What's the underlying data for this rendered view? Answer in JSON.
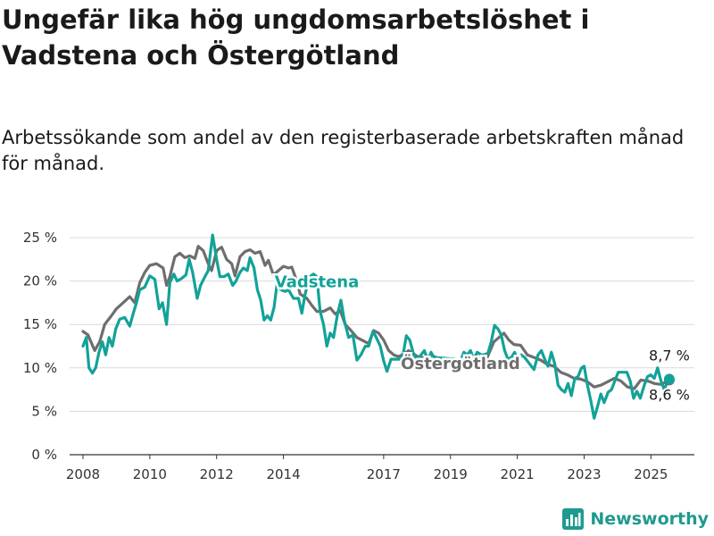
{
  "title": "Ungefär lika hög ungdomsarbetslöshet i Vadstena och Östergötland",
  "subtitle": "Arbetssökande som andel av den registerbaserade arbetskraften månad för månad.",
  "brand": {
    "name": "Newsworthy",
    "icon": "newsworthy-logo-icon",
    "color": "#1f9a8f"
  },
  "chart_data": {
    "type": "line",
    "title": "Ungefär lika hög ungdomsarbetslöshet i Vadstena och Östergötland",
    "xlabel": "",
    "ylabel": "",
    "xlim": [
      2007.6,
      2026.3
    ],
    "ylim": [
      0,
      25
    ],
    "y_ticks": [
      0,
      5,
      10,
      15,
      20,
      25
    ],
    "y_tick_labels": [
      "0 %",
      "5 %",
      "10 %",
      "15 %",
      "20 %",
      "25 %"
    ],
    "x_ticks": [
      2008,
      2010,
      2012,
      2014,
      2017,
      2019,
      2021,
      2023,
      2025
    ],
    "x_tick_labels": [
      "2008",
      "2010",
      "2012",
      "2014",
      "2017",
      "2019",
      "2021",
      "2023",
      "2025"
    ],
    "grid": true,
    "legend": "inline labels",
    "series": [
      {
        "name": "Östergötland",
        "color": "#6e6e6e",
        "end_label": "8,6 %",
        "points": [
          [
            2008.0,
            14.2
          ],
          [
            2008.15,
            13.8
          ],
          [
            2008.35,
            12.0
          ],
          [
            2008.5,
            13.0
          ],
          [
            2008.65,
            15.0
          ],
          [
            2008.85,
            16.0
          ],
          [
            2009.0,
            16.8
          ],
          [
            2009.2,
            17.5
          ],
          [
            2009.4,
            18.2
          ],
          [
            2009.55,
            17.5
          ],
          [
            2009.7,
            19.8
          ],
          [
            2009.85,
            21.0
          ],
          [
            2010.0,
            21.8
          ],
          [
            2010.2,
            22.0
          ],
          [
            2010.4,
            21.5
          ],
          [
            2010.5,
            19.5
          ],
          [
            2010.6,
            20.5
          ],
          [
            2010.75,
            22.8
          ],
          [
            2010.9,
            23.2
          ],
          [
            2011.05,
            22.7
          ],
          [
            2011.2,
            22.9
          ],
          [
            2011.35,
            22.6
          ],
          [
            2011.45,
            24.0
          ],
          [
            2011.6,
            23.5
          ],
          [
            2011.75,
            22.0
          ],
          [
            2011.85,
            21.2
          ],
          [
            2012.0,
            23.5
          ],
          [
            2012.15,
            23.9
          ],
          [
            2012.3,
            22.5
          ],
          [
            2012.45,
            22.0
          ],
          [
            2012.55,
            20.6
          ],
          [
            2012.7,
            22.8
          ],
          [
            2012.85,
            23.4
          ],
          [
            2013.0,
            23.6
          ],
          [
            2013.15,
            23.2
          ],
          [
            2013.3,
            23.4
          ],
          [
            2013.45,
            21.8
          ],
          [
            2013.55,
            22.4
          ],
          [
            2013.7,
            20.7
          ],
          [
            2013.85,
            21.2
          ],
          [
            2014.0,
            21.7
          ],
          [
            2014.15,
            21.5
          ],
          [
            2014.25,
            21.6
          ],
          [
            2014.4,
            20.0
          ],
          [
            2014.5,
            18.5
          ],
          [
            2014.7,
            18.0
          ],
          [
            2014.85,
            17.2
          ],
          [
            2015.0,
            16.5
          ],
          [
            2015.2,
            16.5
          ],
          [
            2015.4,
            16.9
          ],
          [
            2015.55,
            16.2
          ],
          [
            2015.7,
            16.6
          ],
          [
            2015.85,
            15.0
          ],
          [
            2016.0,
            14.4
          ],
          [
            2016.2,
            13.5
          ],
          [
            2016.4,
            13.1
          ],
          [
            2016.55,
            12.8
          ],
          [
            2016.7,
            14.3
          ],
          [
            2016.85,
            14.0
          ],
          [
            2017.0,
            13.2
          ],
          [
            2017.15,
            12.0
          ],
          [
            2017.3,
            11.5
          ],
          [
            2017.45,
            11.3
          ],
          [
            2017.6,
            11.6
          ],
          [
            2017.75,
            12.0
          ],
          [
            2017.9,
            11.6
          ],
          [
            2018.05,
            11.2
          ],
          [
            2018.25,
            11.2
          ],
          [
            2018.45,
            11.4
          ],
          [
            2018.65,
            11.1
          ],
          [
            2018.85,
            10.8
          ],
          [
            2019.1,
            10.0
          ],
          [
            2019.45,
            10.6
          ],
          [
            2019.7,
            10.9
          ],
          [
            2019.9,
            11.1
          ],
          [
            2020.1,
            11.2
          ],
          [
            2020.3,
            13.0
          ],
          [
            2020.45,
            13.5
          ],
          [
            2020.6,
            14.0
          ],
          [
            2020.75,
            13.2
          ],
          [
            2020.9,
            12.7
          ],
          [
            2021.1,
            12.6
          ],
          [
            2021.3,
            11.5
          ],
          [
            2021.5,
            11.2
          ],
          [
            2021.7,
            10.9
          ],
          [
            2021.9,
            10.4
          ],
          [
            2022.1,
            10.2
          ],
          [
            2022.3,
            9.5
          ],
          [
            2022.5,
            9.2
          ],
          [
            2022.7,
            8.8
          ],
          [
            2022.9,
            8.7
          ],
          [
            2023.1,
            8.4
          ],
          [
            2023.3,
            7.8
          ],
          [
            2023.5,
            8.0
          ],
          [
            2023.7,
            8.4
          ],
          [
            2023.9,
            8.8
          ],
          [
            2024.1,
            8.5
          ],
          [
            2024.3,
            7.8
          ],
          [
            2024.5,
            7.6
          ],
          [
            2024.7,
            8.6
          ],
          [
            2024.9,
            8.5
          ],
          [
            2025.1,
            8.2
          ],
          [
            2025.3,
            8.1
          ],
          [
            2025.45,
            8.4
          ],
          [
            2025.55,
            8.6
          ]
        ]
      },
      {
        "name": "Vadstena",
        "color": "#12a298",
        "end_label": "8,7 %",
        "points": [
          [
            2008.0,
            12.5
          ],
          [
            2008.1,
            13.5
          ],
          [
            2008.18,
            10.0
          ],
          [
            2008.28,
            9.4
          ],
          [
            2008.38,
            10.0
          ],
          [
            2008.48,
            11.8
          ],
          [
            2008.58,
            13.0
          ],
          [
            2008.68,
            11.5
          ],
          [
            2008.78,
            13.5
          ],
          [
            2008.88,
            12.5
          ],
          [
            2008.98,
            14.5
          ],
          [
            2009.1,
            15.6
          ],
          [
            2009.25,
            15.8
          ],
          [
            2009.4,
            14.8
          ],
          [
            2009.5,
            16.2
          ],
          [
            2009.6,
            17.5
          ],
          [
            2009.7,
            19.0
          ],
          [
            2009.85,
            19.3
          ],
          [
            2010.0,
            20.6
          ],
          [
            2010.15,
            20.2
          ],
          [
            2010.28,
            16.8
          ],
          [
            2010.38,
            17.5
          ],
          [
            2010.5,
            15.0
          ],
          [
            2010.6,
            19.8
          ],
          [
            2010.72,
            20.8
          ],
          [
            2010.82,
            20.0
          ],
          [
            2010.95,
            20.3
          ],
          [
            2011.08,
            20.7
          ],
          [
            2011.18,
            22.5
          ],
          [
            2011.28,
            21.0
          ],
          [
            2011.42,
            18.0
          ],
          [
            2011.52,
            19.5
          ],
          [
            2011.65,
            20.5
          ],
          [
            2011.75,
            21.2
          ],
          [
            2011.88,
            25.3
          ],
          [
            2012.0,
            22.5
          ],
          [
            2012.1,
            20.5
          ],
          [
            2012.22,
            20.5
          ],
          [
            2012.35,
            20.8
          ],
          [
            2012.48,
            19.5
          ],
          [
            2012.58,
            20.0
          ],
          [
            2012.7,
            21.0
          ],
          [
            2012.8,
            21.5
          ],
          [
            2012.92,
            21.2
          ],
          [
            2013.0,
            22.7
          ],
          [
            2013.12,
            21.5
          ],
          [
            2013.22,
            19.0
          ],
          [
            2013.32,
            17.8
          ],
          [
            2013.42,
            15.5
          ],
          [
            2013.52,
            16.0
          ],
          [
            2013.62,
            15.5
          ],
          [
            2013.72,
            17.0
          ],
          [
            2013.82,
            20.0
          ],
          [
            2013.92,
            19.0
          ],
          [
            2014.05,
            18.8
          ],
          [
            2014.15,
            19.0
          ],
          [
            2014.3,
            18.0
          ],
          [
            2014.45,
            18.0
          ],
          [
            2014.55,
            16.3
          ],
          [
            2014.65,
            18.5
          ],
          [
            2014.78,
            20.5
          ],
          [
            2014.9,
            20.8
          ],
          [
            2015.0,
            20.5
          ],
          [
            2015.1,
            16.5
          ],
          [
            2015.2,
            15.0
          ],
          [
            2015.3,
            12.5
          ],
          [
            2015.4,
            14.0
          ],
          [
            2015.5,
            13.5
          ],
          [
            2015.62,
            16.2
          ],
          [
            2015.72,
            17.8
          ],
          [
            2015.82,
            15.5
          ],
          [
            2015.95,
            13.5
          ],
          [
            2016.08,
            13.8
          ],
          [
            2016.2,
            10.9
          ],
          [
            2016.32,
            11.5
          ],
          [
            2016.45,
            12.5
          ],
          [
            2016.55,
            12.5
          ],
          [
            2016.68,
            14.2
          ],
          [
            2016.78,
            13.5
          ],
          [
            2016.9,
            12.5
          ],
          [
            2017.0,
            10.8
          ],
          [
            2017.1,
            9.6
          ],
          [
            2017.22,
            11.0
          ],
          [
            2017.35,
            11.0
          ],
          [
            2017.48,
            11.0
          ],
          [
            2017.58,
            11.5
          ],
          [
            2017.68,
            13.7
          ],
          [
            2017.78,
            13.2
          ],
          [
            2017.9,
            11.5
          ],
          [
            2018.0,
            11.0
          ],
          [
            2018.12,
            11.5
          ],
          [
            2018.22,
            12.0
          ],
          [
            2018.32,
            10.8
          ],
          [
            2018.42,
            11.8
          ],
          [
            2018.5,
            11.2
          ],
          [
            2019.2,
            11.0
          ],
          [
            2019.3,
            10.8
          ],
          [
            2019.4,
            11.8
          ],
          [
            2019.5,
            11.5
          ],
          [
            2019.6,
            12.0
          ],
          [
            2019.7,
            11.0
          ],
          [
            2019.8,
            11.8
          ],
          [
            2019.92,
            11.5
          ],
          [
            2020.0,
            11.5
          ],
          [
            2020.12,
            11.7
          ],
          [
            2020.22,
            13.0
          ],
          [
            2020.32,
            14.9
          ],
          [
            2020.42,
            14.5
          ],
          [
            2020.52,
            13.8
          ],
          [
            2020.62,
            12.0
          ],
          [
            2020.72,
            11.0
          ],
          [
            2020.82,
            11.2
          ],
          [
            2020.92,
            11.8
          ],
          [
            2021.0,
            11.0
          ],
          [
            2021.12,
            11.5
          ],
          [
            2021.22,
            11.2
          ],
          [
            2021.5,
            9.8
          ],
          [
            2021.62,
            11.5
          ],
          [
            2021.72,
            12.0
          ],
          [
            2021.82,
            11.0
          ],
          [
            2021.92,
            10.2
          ],
          [
            2022.02,
            11.8
          ],
          [
            2022.12,
            10.5
          ],
          [
            2022.22,
            8.0
          ],
          [
            2022.32,
            7.5
          ],
          [
            2022.42,
            7.2
          ],
          [
            2022.52,
            8.2
          ],
          [
            2022.62,
            6.8
          ],
          [
            2022.72,
            8.8
          ],
          [
            2022.82,
            9.0
          ],
          [
            2022.92,
            10.0
          ],
          [
            2023.0,
            10.2
          ],
          [
            2023.1,
            8.0
          ],
          [
            2023.2,
            6.2
          ],
          [
            2023.3,
            4.2
          ],
          [
            2023.4,
            5.5
          ],
          [
            2023.5,
            7.0
          ],
          [
            2023.6,
            6.0
          ],
          [
            2023.72,
            7.2
          ],
          [
            2023.82,
            7.5
          ],
          [
            2023.92,
            8.5
          ],
          [
            2024.02,
            9.5
          ],
          [
            2024.15,
            9.5
          ],
          [
            2024.28,
            9.5
          ],
          [
            2024.38,
            8.5
          ],
          [
            2024.48,
            6.5
          ],
          [
            2024.58,
            7.3
          ],
          [
            2024.68,
            6.5
          ],
          [
            2024.8,
            8.0
          ],
          [
            2024.9,
            9.0
          ],
          [
            2025.0,
            9.2
          ],
          [
            2025.1,
            8.8
          ],
          [
            2025.2,
            10.0
          ],
          [
            2025.3,
            8.5
          ],
          [
            2025.4,
            7.5
          ],
          [
            2025.5,
            8.5
          ],
          [
            2025.55,
            8.7
          ]
        ]
      }
    ],
    "series_labels": [
      {
        "name": "Vadstena",
        "x": 2015.0,
        "y": 19.3
      },
      {
        "name": "Östergötland",
        "x": 2019.3,
        "y": 9.9
      }
    ]
  }
}
